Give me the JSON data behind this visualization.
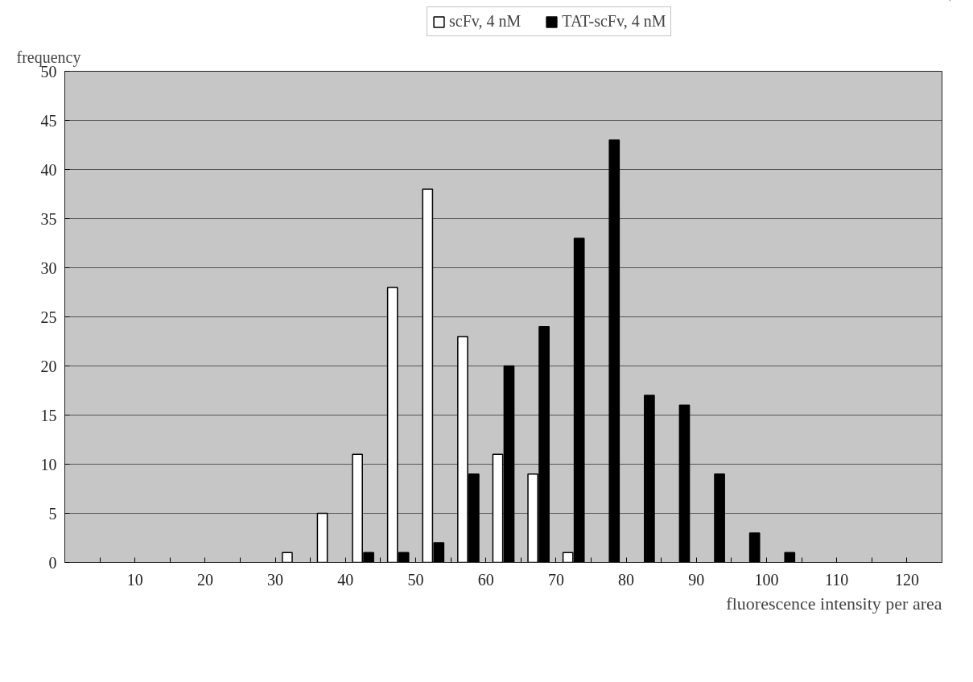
{
  "chart_data": {
    "type": "bar",
    "xlabel": "fluorescence intensity per area",
    "ylabel": "frequency",
    "x": [
      32.5,
      37.5,
      42.5,
      47.5,
      52.5,
      57.5,
      62.5,
      67.5,
      72.5,
      77.5,
      82.5,
      87.5,
      92.5,
      97.5,
      102.5
    ],
    "series": [
      {
        "name": "scFv, 4 nM",
        "color": "#ffffff",
        "values": [
          1,
          5,
          11,
          28,
          38,
          23,
          11,
          9,
          1,
          0,
          0,
          0,
          0,
          0,
          0
        ]
      },
      {
        "name": "TAT-scFv, 4 nM",
        "color": "#000000",
        "values": [
          0,
          0,
          1,
          1,
          2,
          9,
          20,
          24,
          33,
          43,
          17,
          16,
          9,
          3,
          1
        ]
      }
    ],
    "xlim": [
      0,
      125
    ],
    "xticks": [
      {
        "value": 5,
        "label": null
      },
      10,
      {
        "value": 15,
        "label": null
      },
      20,
      {
        "value": 25,
        "label": null
      },
      30,
      {
        "value": 35,
        "label": null
      },
      40,
      {
        "value": 45,
        "label": null
      },
      50,
      {
        "value": 55,
        "label": null
      },
      60,
      {
        "value": 65,
        "label": null
      },
      70,
      {
        "value": 75,
        "label": null
      },
      80,
      {
        "value": 85,
        "label": null
      },
      90,
      {
        "value": 95,
        "label": null
      },
      100,
      {
        "value": 105,
        "label": null
      },
      110,
      {
        "value": 115,
        "label": null
      },
      120
    ],
    "ylim": [
      0,
      50
    ],
    "yticks": [
      0,
      5,
      10,
      15,
      20,
      25,
      30,
      35,
      40,
      45,
      50
    ],
    "grid": "y",
    "legend": "top"
  }
}
